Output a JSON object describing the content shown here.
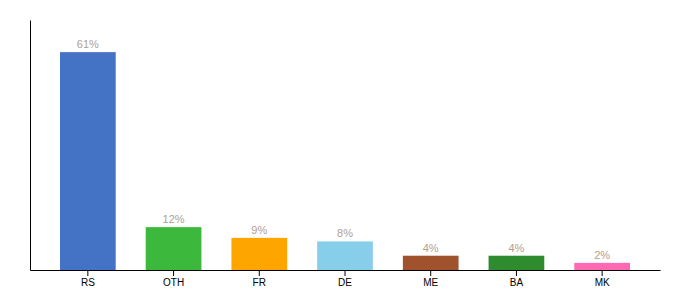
{
  "chart_data": {
    "type": "bar",
    "categories": [
      "RS",
      "OTH",
      "FR",
      "DE",
      "ME",
      "BA",
      "MK"
    ],
    "values": [
      61,
      12,
      9,
      8,
      4,
      4,
      2
    ],
    "value_labels": [
      "61%",
      "12%",
      "9%",
      "8%",
      "4%",
      "4%",
      "2%"
    ],
    "colors": [
      "#4472C4",
      "#3CB93C",
      "#FFA500",
      "#87CEEB",
      "#A0522D",
      "#2E8B2E",
      "#FF69B4"
    ],
    "ylim": [
      0,
      70
    ],
    "data_labels": true,
    "tick_labels": "x",
    "grid": false
  }
}
